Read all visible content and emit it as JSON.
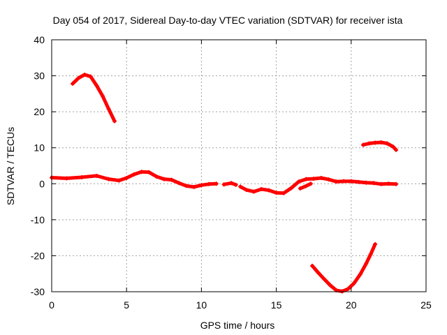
{
  "chart_data": {
    "type": "scatter",
    "title": "Day 054 of 2017, Sidereal Day-to-day VTEC variation (SDTVAR) for receiver ista",
    "xlabel": "GPS time / hours",
    "ylabel": "SDTVAR / TECUs",
    "xlim": [
      0,
      25
    ],
    "ylim": [
      -30,
      40
    ],
    "xticks": [
      0,
      5,
      10,
      15,
      20,
      25
    ],
    "yticks": [
      -30,
      -20,
      -10,
      0,
      10,
      20,
      30,
      40
    ],
    "grid": true,
    "legend": "none",
    "series": [
      {
        "name": "near-zero satellite tracks",
        "color": "#ff0000",
        "segments": [
          [
            [
              0.0,
              1.7
            ],
            [
              1.0,
              1.5
            ],
            [
              2.0,
              1.8
            ],
            [
              3.0,
              2.2
            ],
            [
              3.8,
              1.3
            ],
            [
              4.5,
              0.9
            ],
            [
              5.0,
              1.6
            ],
            [
              5.5,
              2.6
            ],
            [
              6.0,
              3.3
            ],
            [
              6.5,
              3.2
            ],
            [
              7.0,
              2.0
            ],
            [
              7.5,
              1.3
            ],
            [
              8.0,
              1.1
            ],
            [
              8.5,
              0.2
            ],
            [
              9.0,
              -0.6
            ],
            [
              9.5,
              -0.9
            ],
            [
              10.0,
              -0.4
            ],
            [
              10.5,
              -0.1
            ],
            [
              11.0,
              0.0
            ]
          ],
          [
            [
              11.5,
              -0.2
            ],
            [
              12.0,
              0.2
            ],
            [
              12.3,
              -0.3
            ]
          ],
          [
            [
              12.6,
              -0.8
            ],
            [
              13.0,
              -1.7
            ],
            [
              13.5,
              -2.2
            ],
            [
              14.0,
              -1.5
            ],
            [
              14.5,
              -1.8
            ],
            [
              15.0,
              -2.5
            ],
            [
              15.5,
              -2.6
            ],
            [
              16.0,
              -1.2
            ],
            [
              16.5,
              0.6
            ],
            [
              17.0,
              1.3
            ],
            [
              17.5,
              1.4
            ],
            [
              18.0,
              1.6
            ],
            [
              18.5,
              1.2
            ],
            [
              19.0,
              0.6
            ],
            [
              19.5,
              0.7
            ],
            [
              20.0,
              0.7
            ],
            [
              20.5,
              0.5
            ],
            [
              21.0,
              0.3
            ],
            [
              21.5,
              0.2
            ],
            [
              22.0,
              -0.1
            ],
            [
              22.5,
              0.0
            ],
            [
              23.0,
              -0.1
            ]
          ],
          [
            [
              16.6,
              -1.3
            ],
            [
              17.0,
              -0.6
            ],
            [
              17.3,
              0.0
            ]
          ]
        ]
      },
      {
        "name": "early high arc",
        "color": "#ff0000",
        "segments": [
          [
            [
              1.4,
              27.8
            ],
            [
              1.8,
              29.4
            ],
            [
              2.2,
              30.3
            ],
            [
              2.6,
              29.8
            ],
            [
              3.0,
              27.3
            ],
            [
              3.4,
              24.4
            ],
            [
              3.8,
              20.8
            ],
            [
              4.2,
              17.4
            ]
          ]
        ]
      },
      {
        "name": "late high arc",
        "color": "#ff0000",
        "segments": [
          [
            [
              20.8,
              10.8
            ],
            [
              21.2,
              11.2
            ],
            [
              21.6,
              11.4
            ],
            [
              22.0,
              11.5
            ],
            [
              22.4,
              11.2
            ],
            [
              22.8,
              10.3
            ],
            [
              23.0,
              9.4
            ]
          ]
        ]
      },
      {
        "name": "negative arc",
        "color": "#ff0000",
        "segments": [
          [
            [
              17.4,
              -22.8
            ],
            [
              17.8,
              -24.7
            ],
            [
              18.2,
              -26.5
            ],
            [
              18.6,
              -28.2
            ],
            [
              19.0,
              -29.6
            ],
            [
              19.4,
              -29.9
            ],
            [
              19.8,
              -29.2
            ],
            [
              20.2,
              -27.6
            ],
            [
              20.6,
              -25.2
            ],
            [
              21.0,
              -22.2
            ],
            [
              21.3,
              -19.6
            ],
            [
              21.6,
              -16.8
            ]
          ]
        ]
      }
    ]
  }
}
